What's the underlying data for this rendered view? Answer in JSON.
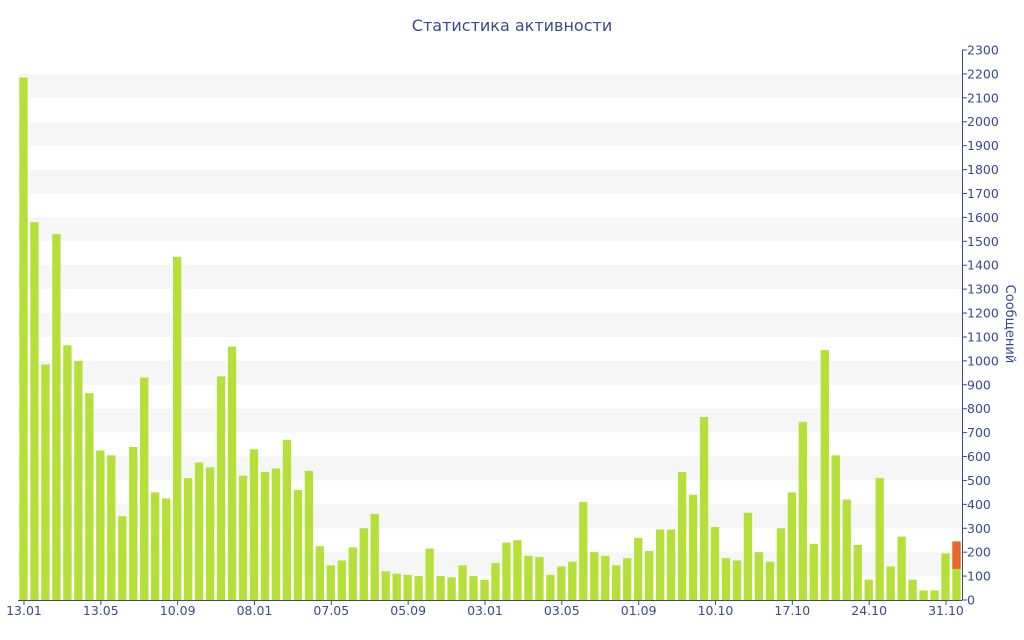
{
  "chart_data": {
    "type": "bar",
    "title": "Статистика активности",
    "ylabel": "Сообщений",
    "xlabel": "",
    "ylim": [
      0,
      2300
    ],
    "y_ticks": [
      0,
      100,
      200,
      300,
      400,
      500,
      600,
      700,
      800,
      900,
      1000,
      1100,
      1200,
      1300,
      1400,
      1500,
      1600,
      1700,
      1800,
      1900,
      2000,
      2100,
      2200,
      2300
    ],
    "x_tick_labels": [
      "13.01",
      "13.05",
      "10.09",
      "08.01",
      "07.05",
      "05.09",
      "03.01",
      "03.05",
      "01.09",
      "10.10",
      "17.10",
      "24.10",
      "31.10"
    ],
    "y_axis_side": "right",
    "grid": "alternating horizontal bands",
    "colors": {
      "bar": "#b5e03a",
      "highlight": "#e8662e",
      "text": "#3b4a8c",
      "band": "#f6f6f6"
    },
    "values": [
      2185,
      1580,
      985,
      1530,
      1065,
      1000,
      865,
      625,
      605,
      350,
      640,
      930,
      450,
      425,
      1435,
      510,
      575,
      555,
      935,
      1060,
      520,
      630,
      535,
      550,
      670,
      460,
      540,
      225,
      145,
      165,
      220,
      300,
      360,
      120,
      110,
      105,
      100,
      215,
      100,
      95,
      145,
      100,
      85,
      155,
      240,
      250,
      185,
      180,
      105,
      140,
      160,
      410,
      200,
      185,
      145,
      175,
      260,
      205,
      295,
      295,
      535,
      440,
      765,
      305,
      175,
      165,
      365,
      200,
      160,
      300,
      450,
      745,
      235,
      1045,
      605,
      420,
      230,
      85,
      510,
      140,
      265,
      85,
      40,
      40,
      195,
      245
    ],
    "highlight": {
      "index": 85,
      "base": 130,
      "value": 245
    }
  }
}
